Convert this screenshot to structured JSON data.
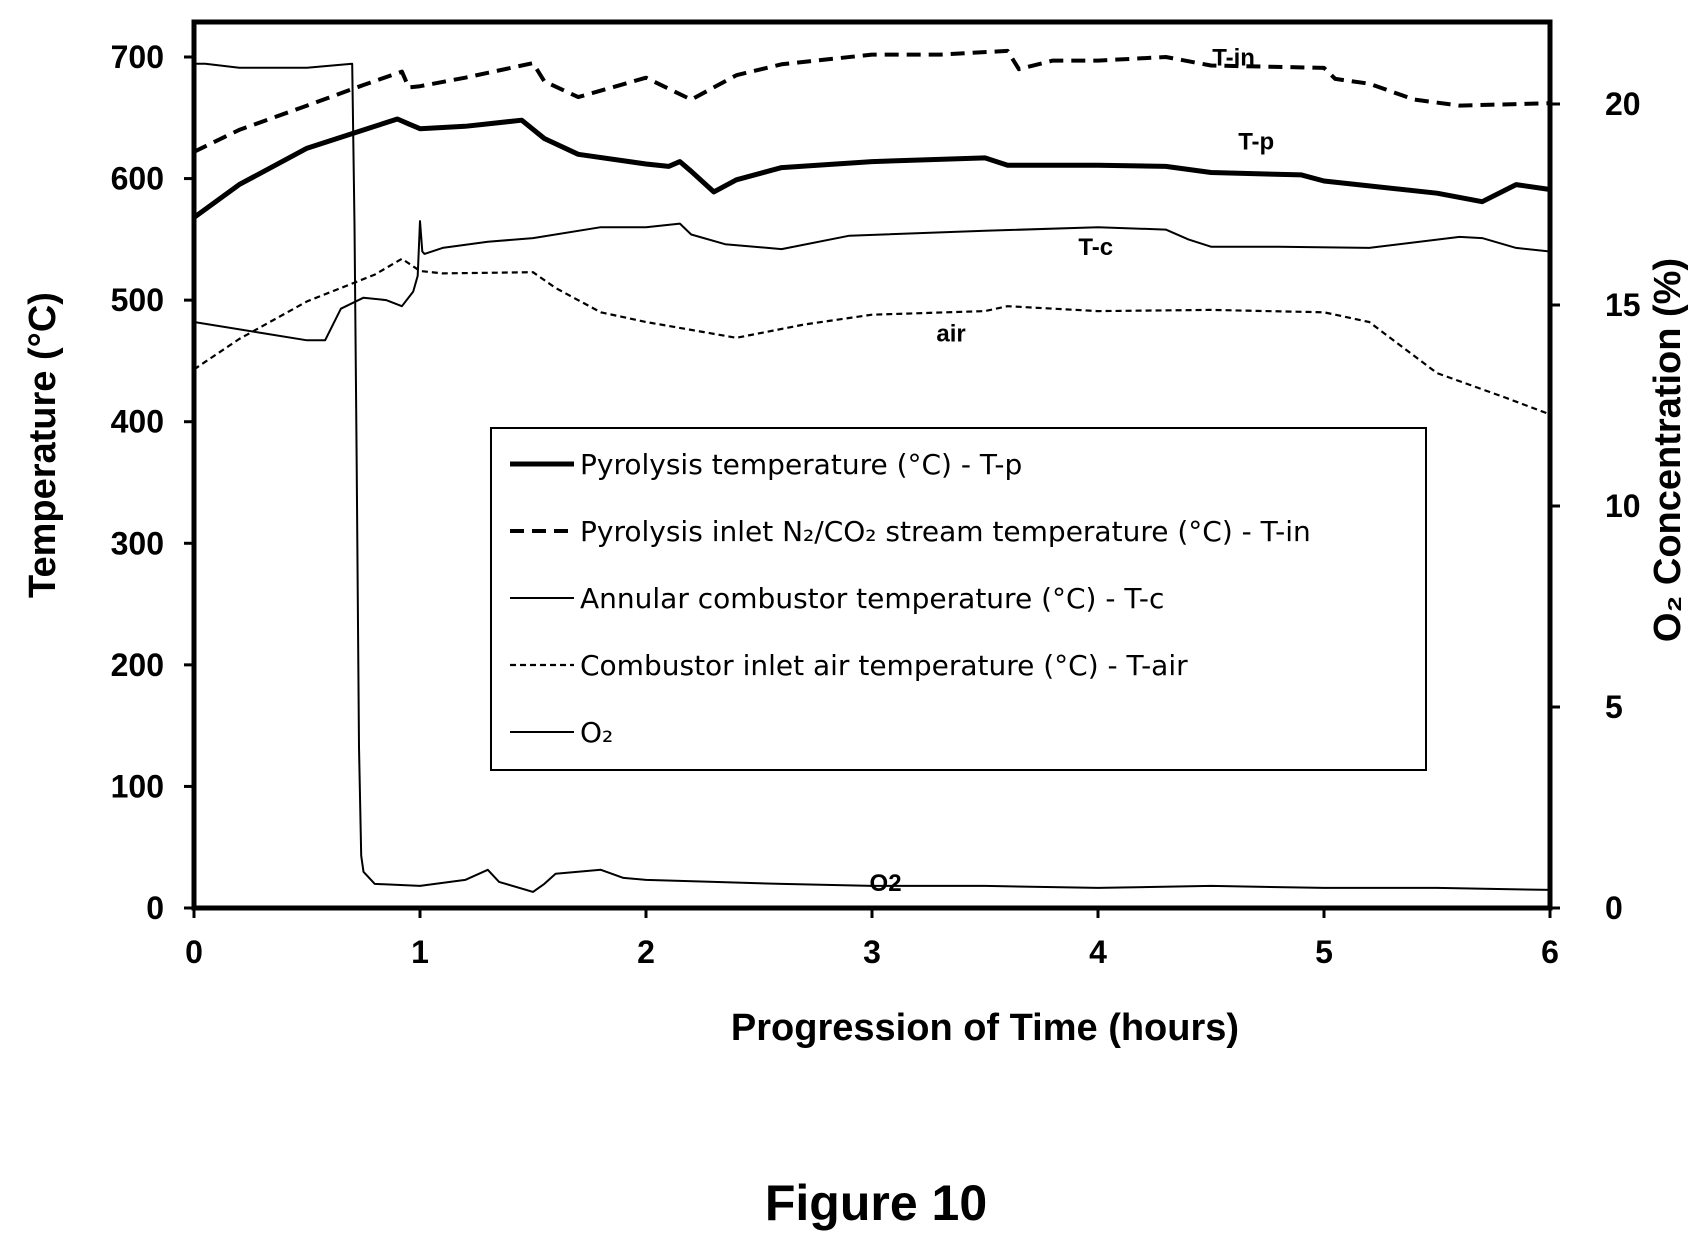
{
  "chart_data": {
    "type": "line",
    "caption": "Figure 10",
    "xlabel": "Progression of Time (hours)",
    "ylabel_left": "Temperature (°C)",
    "ylabel_right": "O₂ Concentration (%)",
    "xlim": [
      0,
      6
    ],
    "ylim_left": [
      0,
      700
    ],
    "ylim_right": [
      0,
      20
    ],
    "x_ticks": [
      "0",
      "1",
      "2",
      "3",
      "4",
      "5",
      "6"
    ],
    "y_left_ticks": [
      "0",
      "100",
      "200",
      "300",
      "400",
      "500",
      "600",
      "700"
    ],
    "y_right_ticks": [
      "0",
      "5",
      "10",
      "15",
      "20"
    ],
    "grid": false,
    "legend_position": "center",
    "annotations": [
      {
        "text": "T-in",
        "x": 4.6,
        "y": 693
      },
      {
        "text": "T-p",
        "x": 4.7,
        "y": 624
      },
      {
        "text": "T-c",
        "x": 3.99,
        "y": 537
      },
      {
        "text": "air",
        "x": 3.35,
        "y": 466
      },
      {
        "text": "O2",
        "x": 3.06,
        "y": 14
      }
    ],
    "series": [
      {
        "name": "Pyrolysis temperature (°C) - T-p",
        "axis": "left",
        "style": "thick",
        "x": [
          0,
          0.2,
          0.5,
          0.9,
          0.95,
          1.0,
          1.2,
          1.45,
          1.55,
          1.7,
          2.0,
          2.1,
          2.15,
          2.2,
          2.3,
          2.4,
          2.6,
          3.0,
          3.5,
          3.6,
          3.7,
          4.0,
          4.3,
          4.5,
          4.9,
          5.0,
          5.5,
          5.7,
          5.85,
          6.0
        ],
        "y": [
          568,
          595,
          625,
          649,
          645,
          641,
          643,
          648,
          633,
          620,
          612,
          610,
          614,
          606,
          589,
          599,
          609,
          614,
          617,
          611,
          611,
          611,
          610,
          605,
          603,
          598,
          588,
          581,
          595,
          591
        ]
      },
      {
        "name": "Pyrolysis inlet N₂/CO₂ stream temperature (°C) - T-in",
        "axis": "left",
        "style": "dashed",
        "x": [
          0,
          0.2,
          0.5,
          0.75,
          0.92,
          0.95,
          1.0,
          1.2,
          1.5,
          1.55,
          1.7,
          2.0,
          2.2,
          2.3,
          2.4,
          2.6,
          3.0,
          3.3,
          3.6,
          3.65,
          3.8,
          4.0,
          4.3,
          4.5,
          5.0,
          5.05,
          5.2,
          5.4,
          5.6,
          6.0
        ],
        "y": [
          622,
          640,
          660,
          677,
          688,
          675,
          676,
          683,
          695,
          680,
          667,
          683,
          665,
          675,
          685,
          694,
          702,
          702,
          705,
          690,
          697,
          697,
          700,
          693,
          691,
          682,
          678,
          665,
          660,
          662
        ]
      },
      {
        "name": "Annular combustor temperature (°C) - T-c",
        "axis": "left",
        "style": "thin",
        "x": [
          0,
          0.3,
          0.5,
          0.58,
          0.65,
          0.75,
          0.85,
          0.92,
          0.97,
          0.99,
          1.0,
          1.01,
          1.02,
          1.1,
          1.3,
          1.5,
          1.8,
          2.0,
          2.15,
          2.2,
          2.35,
          2.6,
          2.9,
          3.5,
          4.0,
          4.3,
          4.4,
          4.5,
          4.8,
          5.2,
          5.6,
          5.7,
          5.85,
          6.0
        ],
        "y": [
          482,
          473,
          467,
          467,
          493,
          502,
          500,
          495,
          507,
          520,
          565,
          540,
          538,
          543,
          548,
          551,
          560,
          560,
          563,
          554,
          546,
          542,
          553,
          557,
          560,
          558,
          550,
          544,
          544,
          543,
          552,
          551,
          543,
          540
        ]
      },
      {
        "name": "Combustor inlet air temperature (°C) - T-air",
        "axis": "left",
        "style": "dotted",
        "x": [
          0,
          0.2,
          0.5,
          0.8,
          0.92,
          0.96,
          1.0,
          1.1,
          1.5,
          1.6,
          1.8,
          2.0,
          2.4,
          2.7,
          3.0,
          3.5,
          3.6,
          4.0,
          4.5,
          5.0,
          5.2,
          5.5,
          5.8,
          6.0
        ],
        "y": [
          443,
          468,
          499,
          521,
          534,
          529,
          524,
          522,
          523,
          510,
          490,
          482,
          469,
          480,
          488,
          491,
          495,
          491,
          492,
          490,
          482,
          440,
          420,
          406
        ]
      },
      {
        "name": "O₂",
        "axis": "right",
        "style": "thin",
        "x": [
          0,
          0.05,
          0.2,
          0.5,
          0.7,
          0.71,
          0.72,
          0.73,
          0.74,
          0.75,
          0.8,
          1.0,
          1.2,
          1.3,
          1.35,
          1.5,
          1.55,
          1.6,
          1.8,
          1.9,
          2.0,
          2.3,
          2.6,
          3.0,
          3.5,
          4.0,
          4.5,
          5.0,
          5.5,
          6.0
        ],
        "y": [
          21,
          21,
          20.9,
          20.9,
          21,
          17,
          11,
          4,
          1.3,
          0.9,
          0.6,
          0.55,
          0.7,
          0.95,
          0.65,
          0.4,
          0.6,
          0.85,
          0.95,
          0.75,
          0.7,
          0.65,
          0.6,
          0.55,
          0.55,
          0.5,
          0.55,
          0.5,
          0.5,
          0.45
        ]
      }
    ]
  }
}
